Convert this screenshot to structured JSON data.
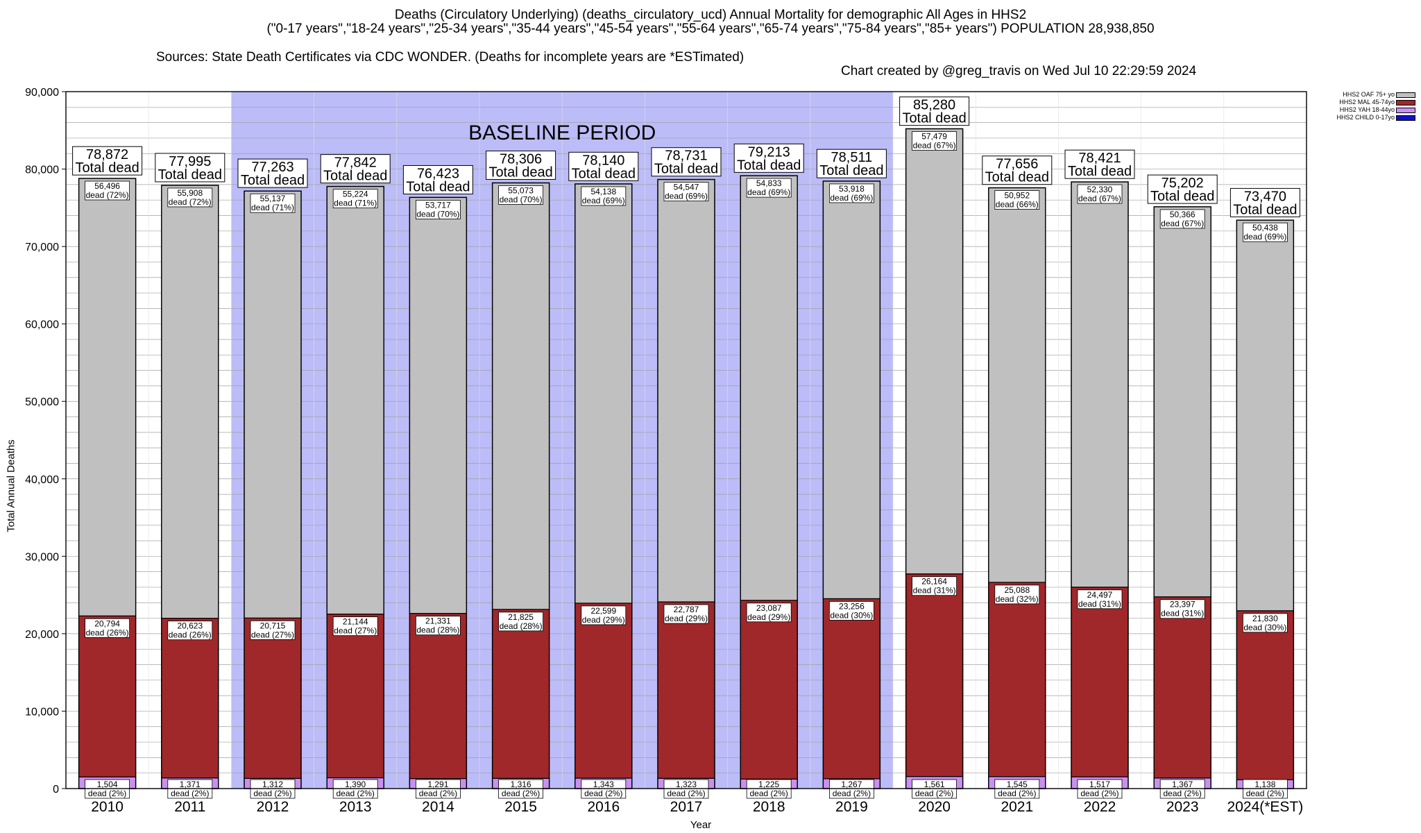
{
  "header": {
    "title_line1": "Deaths (Circulatory Underlying) (deaths_circulatory_ucd) Annual Mortality for demographic All Ages in HHS2",
    "title_line2": "(\"0-17 years\",\"18-24 years\",\"25-34 years\",\"35-44 years\",\"45-54 years\",\"55-64 years\",\"65-74 years\",\"75-84 years\",\"85+ years\") POPULATION 28,938,850",
    "sources": "Sources: State Death Certificates via CDC WONDER. (Deaths for incomplete years are *ESTimated)",
    "credit": "Chart created by @greg_travis on Wed Jul 10 22:29:59 2024"
  },
  "chart_data": {
    "type": "bar",
    "stacked": true,
    "categories": [
      "2010",
      "2011",
      "2012",
      "2013",
      "2014",
      "2015",
      "2016",
      "2017",
      "2018",
      "2019",
      "2020",
      "2021",
      "2022",
      "2023",
      "2024(*EST)"
    ],
    "series": [
      {
        "name": "HHS2 CHILD 0-17yo",
        "color": "#1010c8",
        "values": [
          null,
          null,
          null,
          null,
          null,
          null,
          null,
          null,
          null,
          null,
          null,
          null,
          null,
          null,
          null
        ]
      },
      {
        "name": "HHS2 YAH 18-44yo",
        "color": "#c890f0",
        "values": [
          1504,
          1371,
          1312,
          1390,
          1291,
          1316,
          1343,
          1323,
          1225,
          1267,
          1561,
          1545,
          1517,
          1367,
          1138
        ],
        "labels": [
          "1,504",
          "1,371",
          "1,312",
          "1,390",
          "1,291",
          "1,316",
          "1,343",
          "1,323",
          "1,225",
          "1,267",
          "1,561",
          "1,545",
          "1,517",
          "1,367",
          "1,138"
        ],
        "percents": [
          "dead (2%)",
          "dead (2%)",
          "dead (2%)",
          "dead (2%)",
          "dead (2%)",
          "dead (2%)",
          "dead (2%)",
          "dead (2%)",
          "dead (2%)",
          "dead (2%)",
          "dead (2%)",
          "dead (2%)",
          "dead (2%)",
          "dead (2%)",
          "dead (2%)"
        ]
      },
      {
        "name": "HHS2 MAL 45-74yo",
        "color": "#a0282a",
        "values": [
          20794,
          20623,
          20715,
          21144,
          21331,
          21825,
          22599,
          22787,
          23087,
          23256,
          26164,
          25088,
          24497,
          23397,
          21830
        ],
        "labels": [
          "20,794",
          "20,623",
          "20,715",
          "21,144",
          "21,331",
          "21,825",
          "22,599",
          "22,787",
          "23,087",
          "23,256",
          "26,164",
          "25,088",
          "24,497",
          "23,397",
          "21,830"
        ],
        "percents": [
          "dead (26%)",
          "dead (26%)",
          "dead (27%)",
          "dead (27%)",
          "dead (28%)",
          "dead (28%)",
          "dead (29%)",
          "dead (29%)",
          "dead (29%)",
          "dead (30%)",
          "dead (31%)",
          "dead (32%)",
          "dead (31%)",
          "dead (31%)",
          "dead (30%)"
        ]
      },
      {
        "name": "HHS2 OAF 75+ yo",
        "color": "#c0c0c0",
        "values": [
          56496,
          55908,
          55137,
          55224,
          53717,
          55073,
          54138,
          54547,
          54833,
          53918,
          57479,
          50952,
          52330,
          50366,
          50438
        ],
        "labels": [
          "56,496",
          "55,908",
          "55,137",
          "55,224",
          "53,717",
          "55,073",
          "54,138",
          "54,547",
          "54,833",
          "53,918",
          "57,479",
          "50,952",
          "52,330",
          "50,366",
          "50,438"
        ],
        "percents": [
          "dead (72%)",
          "dead (72%)",
          "dead (71%)",
          "dead (71%)",
          "dead (70%)",
          "dead (70%)",
          "dead (69%)",
          "dead (69%)",
          "dead (69%)",
          "dead (69%)",
          "dead (67%)",
          "dead (66%)",
          "dead (67%)",
          "dead (67%)",
          "dead (69%)"
        ]
      }
    ],
    "totals": [
      78872,
      77995,
      77263,
      77842,
      76423,
      78306,
      78140,
      78731,
      79213,
      78511,
      85280,
      77656,
      78421,
      75202,
      73470
    ],
    "total_labels": [
      "78,872",
      "77,995",
      "77,263",
      "77,842",
      "76,423",
      "78,306",
      "78,140",
      "78,731",
      "79,213",
      "78,511",
      "85,280",
      "77,656",
      "78,421",
      "75,202",
      "73,470"
    ],
    "total_caption": "Total dead",
    "xlabel": "Year",
    "ylabel": "Total Annual Deaths",
    "ylim": [
      0,
      90000
    ],
    "yticks": [
      0,
      10000,
      20000,
      30000,
      40000,
      50000,
      60000,
      70000,
      80000,
      90000
    ],
    "ytick_labels": [
      "0",
      "10,000",
      "20,000",
      "30,000",
      "40,000",
      "50,000",
      "60,000",
      "70,000",
      "80,000",
      "90,000"
    ],
    "minor_grid_step": 2000,
    "grid": true,
    "baseline": {
      "label": "BASELINE PERIOD",
      "from": "2012",
      "to": "2019",
      "color": "#bcbcf8"
    },
    "legend_position": "top-right"
  }
}
